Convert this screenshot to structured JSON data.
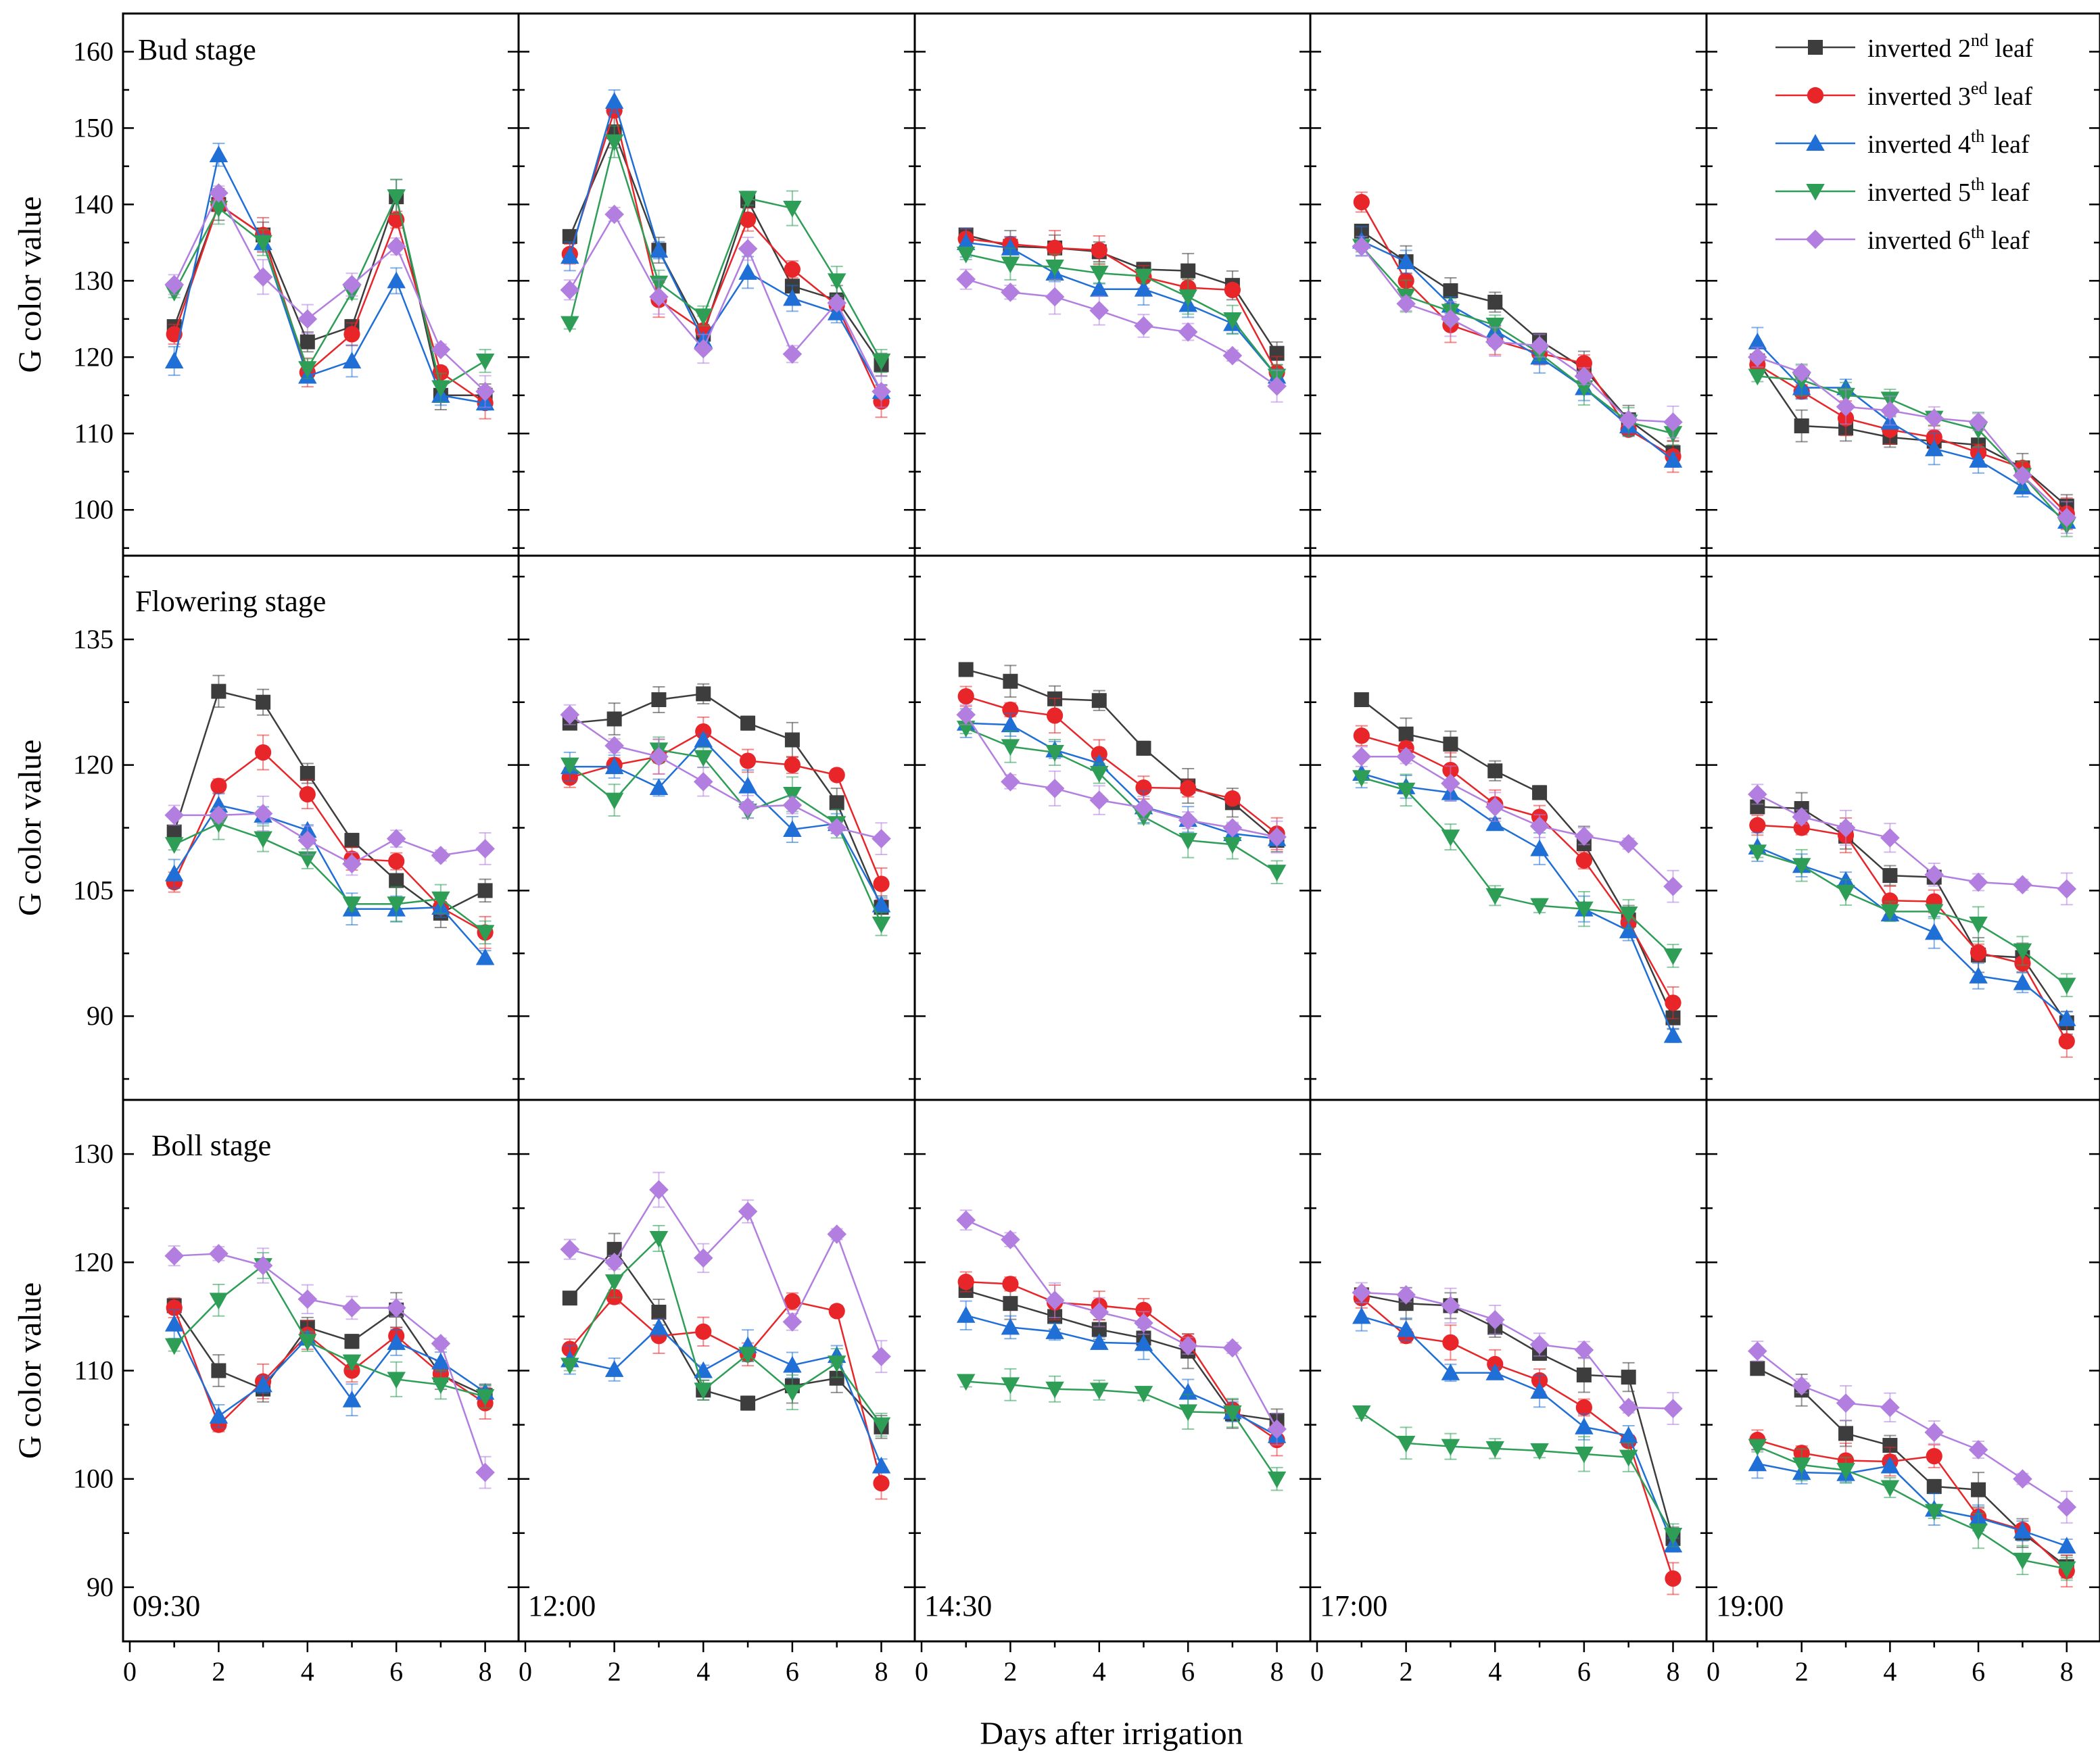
{
  "chart_data": {
    "type": "line",
    "title": "",
    "xlabel": "Days after irrigation",
    "ylabel": "G color  value",
    "x": [
      1,
      2,
      3,
      4,
      5,
      6,
      7,
      8
    ],
    "xlim": [
      0,
      8.6
    ],
    "xticks": [
      0,
      2,
      4,
      6,
      8
    ],
    "columns": [
      "09:30",
      "12:00",
      "14:30",
      "17:00",
      "19:00"
    ],
    "series_names": [
      {
        "base": "inverted 2",
        "sup": "nd",
        "tail": " leaf",
        "color": "#3d3d3d",
        "marker": "square"
      },
      {
        "base": "inverted 3",
        "sup": "ed",
        "tail": " leaf",
        "color": "#e8262a",
        "marker": "circle"
      },
      {
        "base": "inverted 4",
        "sup": "th",
        "tail": "  leaf",
        "color": "#1f6fd6",
        "marker": "triangle-up"
      },
      {
        "base": "inverted 5",
        "sup": "th",
        "tail": "  leaf",
        "color": "#2e9e57",
        "marker": "triangle-down"
      },
      {
        "base": "inverted 6",
        "sup": "th",
        "tail": " leaf",
        "color": "#b27fe0",
        "marker": "diamond"
      }
    ],
    "rows": [
      {
        "stage": "Bud stage",
        "ylim": [
          94,
          165
        ],
        "yticks": [
          100,
          110,
          120,
          130,
          140,
          150,
          160
        ],
        "panels": [
          {
            "time": "09:30",
            "series": [
              [
                124,
                140,
                136,
                122,
                124,
                141,
                115,
                115
              ],
              [
                123,
                140,
                136,
                118,
                123,
                138,
                118,
                114
              ],
              [
                119.5,
                146.5,
                135,
                117.5,
                119.5,
                130,
                115,
                114
              ],
              [
                128.5,
                139.5,
                135,
                118.5,
                128.5,
                141,
                116,
                119.5
              ],
              [
                129.5,
                141.5,
                130.5,
                125,
                129.5,
                134.5,
                121,
                115.5
              ]
            ]
          },
          {
            "time": "12:00",
            "series": [
              [
                135.8,
                149.5,
                134,
                123,
                140.5,
                129.3,
                127.5,
                119
              ],
              [
                133.5,
                152.3,
                127.5,
                123.5,
                138,
                131.5,
                126.8,
                114.2
              ],
              [
                133.2,
                153.5,
                134,
                122.2,
                131.1,
                127.7,
                125.8,
                115.5
              ],
              [
                124.4,
                148.2,
                129.7,
                125.4,
                140.8,
                139.5,
                130,
                119.5
              ],
              [
                128.8,
                138.7,
                127.9,
                121.1,
                134.2,
                120.4,
                127.1,
                115.5
              ]
            ]
          },
          {
            "time": "14:30",
            "series": [
              [
                136,
                134.5,
                134.3,
                133.8,
                131.5,
                131.3,
                129.4,
                120.5
              ],
              [
                135.5,
                134.8,
                134.3,
                134,
                130.5,
                129.1,
                128.8,
                118
              ],
              [
                135,
                134.3,
                131,
                128.9,
                128.9,
                126.9,
                124.4,
                117.5
              ],
              [
                133.5,
                132.2,
                131.8,
                131,
                130.6,
                127.9,
                124.9,
                117.5
              ],
              [
                130.2,
                128.5,
                127.9,
                126.1,
                124.1,
                123.3,
                120.2,
                116.2
              ]
            ]
          },
          {
            "time": "17:00",
            "series": [
              [
                136.5,
                132.5,
                128.7,
                127.2,
                122.2,
                118.5,
                111.8,
                107.5
              ],
              [
                140.3,
                130,
                124.2,
                122.2,
                120.5,
                119.2,
                110.5,
                107
              ],
              [
                135.2,
                132.5,
                126.8,
                123.5,
                120,
                116,
                111,
                106.5
              ],
              [
                134.5,
                128,
                126,
                124.2,
                120.5,
                116,
                111.5,
                110
              ],
              [
                134.5,
                127,
                125,
                122,
                121.5,
                117.5,
                111.8,
                111.5
              ]
            ]
          },
          {
            "time": "19:00",
            "series": [
              [
                119.5,
                111,
                110.7,
                109.5,
                109,
                108.5,
                105.5,
                100.5
              ],
              [
                119,
                115.5,
                112,
                110.5,
                109.5,
                107.5,
                105.5,
                99.5
              ],
              [
                122,
                116,
                116,
                111.5,
                108,
                106.5,
                103,
                98.5
              ],
              [
                117.5,
                117,
                115,
                114.5,
                112,
                110.5,
                104.5,
                98
              ],
              [
                120,
                118,
                113.5,
                113,
                112,
                111.5,
                104.5,
                99
              ]
            ]
          }
        ]
      },
      {
        "stage": "Flowering stage",
        "ylim": [
          80,
          145
        ],
        "yticks": [
          90,
          105,
          120,
          135
        ],
        "panels": [
          {
            "time": "09:30",
            "series": [
              [
                112,
                128.8,
                127.5,
                119,
                111,
                106.2,
                102.3,
                105
              ],
              [
                106,
                117.5,
                121.5,
                116.5,
                108.8,
                108.5,
                103,
                100
              ],
              [
                107,
                115.2,
                114,
                112.2,
                102.8,
                102.8,
                103,
                97
              ],
              [
                110.5,
                113,
                111.2,
                108.8,
                103.4,
                103.4,
                104,
                100
              ],
              [
                114,
                114,
                114.2,
                111,
                108.2,
                111.2,
                109.2,
                110
              ]
            ]
          },
          {
            "time": "12:00",
            "series": [
              [
                125,
                125.5,
                127.8,
                128.5,
                125,
                123,
                115.5,
                103
              ],
              [
                118.5,
                120,
                121,
                124,
                120.5,
                120,
                118.8,
                105.8
              ],
              [
                119.8,
                119.8,
                117.3,
                123,
                117.5,
                112.3,
                113,
                103.3
              ],
              [
                120,
                115.8,
                121.8,
                120.9,
                114.5,
                116.5,
                113,
                101
              ],
              [
                126,
                122.3,
                121,
                118,
                115,
                115.2,
                112.5,
                111.2
              ]
            ]
          },
          {
            "time": "14:30",
            "series": [
              [
                131.4,
                130,
                127.9,
                127.7,
                122,
                117.5,
                115.5,
                111
              ],
              [
                128.2,
                126.6,
                125.9,
                121.3,
                117.3,
                117.2,
                116,
                111.8
              ],
              [
                125,
                124.8,
                121.8,
                120.2,
                115,
                113.5,
                111.8,
                111.2
              ],
              [
                124.4,
                122.2,
                121.5,
                119,
                113.8,
                111,
                110.5,
                107.2
              ],
              [
                126,
                118,
                117.2,
                115.8,
                114.9,
                113.4,
                112.5,
                111.4
              ]
            ]
          },
          {
            "time": "17:00",
            "series": [
              [
                127.8,
                123.7,
                122.5,
                119.3,
                116.7,
                110.6,
                101.5,
                89.8
              ],
              [
                123.5,
                122,
                119.4,
                115.3,
                113.8,
                108.6,
                101.2,
                91.6
              ],
              [
                119,
                117.4,
                116.7,
                113,
                110,
                102.8,
                100.2,
                87.7
              ],
              [
                118.5,
                117,
                111.4,
                104.4,
                103.2,
                102.8,
                102.2,
                97.2
              ],
              [
                121,
                121,
                117.8,
                115,
                112.7,
                111.5,
                110.6,
                105.5
              ]
            ]
          },
          {
            "time": "19:00",
            "series": [
              [
                115,
                114.8,
                111.5,
                106.8,
                106.6,
                97.3,
                97,
                89.2
              ],
              [
                112.8,
                112.5,
                111.6,
                103.8,
                103.7,
                97.6,
                96.3,
                87
              ],
              [
                110.2,
                108,
                106.2,
                102.2,
                100,
                94.8,
                94,
                89.7
              ],
              [
                109.6,
                108,
                104.8,
                102.5,
                102.5,
                101,
                97.8,
                93.7
              ],
              [
                116.5,
                113.8,
                112.5,
                111.3,
                106.9,
                106,
                105.7,
                105.2
              ]
            ]
          }
        ]
      },
      {
        "stage": "Boll stage",
        "ylim": [
          85,
          135
        ],
        "yticks": [
          90,
          100,
          110,
          120,
          130
        ],
        "panels": [
          {
            "time": "09:30",
            "series": [
              [
                116,
                110,
                108.3,
                114,
                112.7,
                115.6,
                109.6,
                107.7
              ],
              [
                115.8,
                105,
                109,
                113.3,
                110,
                113.2,
                109.7,
                107
              ],
              [
                114.3,
                105.8,
                108.7,
                113,
                107.3,
                112.6,
                110.8,
                108
              ],
              [
                112.3,
                116.5,
                119.7,
                112.7,
                110.8,
                109.2,
                108.7,
                107.6
              ],
              [
                120.6,
                120.8,
                119.7,
                116.6,
                115.8,
                115.8,
                112.5,
                100.6
              ]
            ]
          },
          {
            "time": "12:00",
            "series": [
              [
                116.7,
                121.2,
                115.4,
                108.2,
                107,
                108.6,
                109.3,
                104.8
              ],
              [
                112,
                116.8,
                113.2,
                113.6,
                111.5,
                116.4,
                115.5,
                99.6
              ],
              [
                111,
                110.1,
                114,
                110,
                112.3,
                110.5,
                111.4,
                101.2
              ],
              [
                110.5,
                118.2,
                122.2,
                108.2,
                111.5,
                108,
                110.7,
                105
              ],
              [
                121.2,
                120,
                126.7,
                120.4,
                124.7,
                114.5,
                122.6,
                111.3
              ]
            ]
          },
          {
            "time": "14:30",
            "series": [
              [
                117.4,
                116.2,
                115,
                113.8,
                113,
                111.8,
                106,
                105.4
              ],
              [
                118.2,
                118,
                116.3,
                116,
                115.6,
                112.6,
                106.4,
                103.6
              ],
              [
                115.1,
                114,
                113.6,
                112.6,
                112.5,
                108,
                106.2,
                104
              ],
              [
                109,
                108.7,
                108.3,
                108.2,
                107.9,
                106.2,
                106.1,
                100
              ],
              [
                123.9,
                122.1,
                116.5,
                115.4,
                114.4,
                112.3,
                112.1,
                104.6
              ]
            ]
          },
          {
            "time": "17:00",
            "series": [
              [
                117,
                116.2,
                116,
                114,
                111.6,
                109.6,
                109.4,
                94.5
              ],
              [
                116.7,
                113.2,
                112.6,
                110.6,
                109.1,
                106.6,
                103.5,
                90.8
              ],
              [
                115,
                113.8,
                109.8,
                109.8,
                108.1,
                104.8,
                104,
                93.9
              ],
              [
                106.1,
                103.3,
                103,
                102.8,
                102.6,
                102.3,
                102,
                94.8
              ],
              [
                117.2,
                117,
                116,
                114.7,
                112.4,
                111.9,
                106.6,
                106.5
              ]
            ]
          },
          {
            "time": "19:00",
            "series": [
              [
                110.2,
                108.2,
                104.2,
                103.1,
                99.3,
                99,
                95,
                91.9
              ],
              [
                103.6,
                102.4,
                101.7,
                101.6,
                102.1,
                96.5,
                95.3,
                91.5
              ],
              [
                101.4,
                100.6,
                100.5,
                101.2,
                97.2,
                96.4,
                95.2,
                93.8
              ],
              [
                103,
                101.3,
                100.8,
                99.2,
                97,
                95.2,
                92.5,
                91.7
              ],
              [
                111.8,
                108.6,
                107,
                106.6,
                104.3,
                102.7,
                100,
                97.4
              ]
            ]
          }
        ]
      }
    ]
  }
}
